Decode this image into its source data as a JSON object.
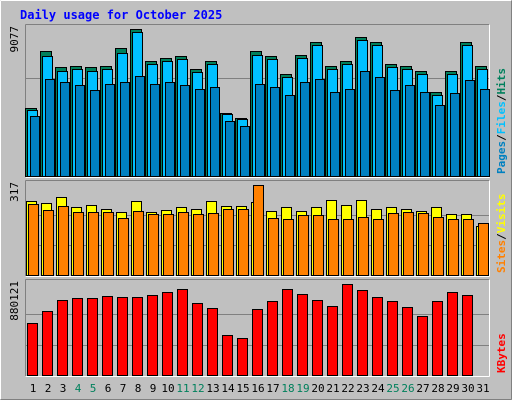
{
  "chart_data": {
    "type": "bar",
    "title": "Daily usage for October 2025",
    "colors": {
      "background": "#c0c0c0",
      "frame_light": "#ffffff",
      "frame_dark": "#808080",
      "title": "#0000ff",
      "hits": "#00805c",
      "files": "#00c0ff",
      "pages": "#0080c0",
      "visits": "#ffff00",
      "sites": "#ff8000",
      "kbytes": "#ff0000",
      "weekday_text": "#000000",
      "weekend_text": "#00805c",
      "grid": "#808080"
    },
    "days": [
      "1",
      "2",
      "3",
      "4",
      "5",
      "6",
      "7",
      "8",
      "9",
      "10",
      "11",
      "12",
      "13",
      "14",
      "15",
      "16",
      "17",
      "18",
      "19",
      "20",
      "21",
      "22",
      "23",
      "24",
      "25",
      "26",
      "27",
      "28",
      "29",
      "30",
      "31"
    ],
    "weekend_days": [
      "4",
      "5",
      "11",
      "12",
      "18",
      "19",
      "25",
      "26"
    ],
    "panels": [
      {
        "id": "hits-panel",
        "max_label": "9077",
        "ymax": 9077,
        "legend": [
          "Pages",
          "/",
          "Files",
          "/",
          "Hits"
        ],
        "legend_keys": [
          "pages",
          "sep",
          "files",
          "sep",
          "hits"
        ],
        "series": [
          {
            "name": "Hits",
            "key": "hits",
            "values": [
              4200,
              7700,
              6700,
              6800,
              6700,
              6800,
              7900,
              9077,
              7100,
              7300,
              7400,
              6600,
              7100,
              3900,
              3600,
              7700,
              7400,
              6300,
              7500,
              8300,
              6800,
              7100,
              8600,
              8300,
              6900,
              6800,
              6500,
              5200,
              6500,
              8300,
              6800
            ]
          },
          {
            "name": "Files",
            "key": "files",
            "values": [
              4100,
              7400,
              6500,
              6600,
              6500,
              6600,
              7600,
              8900,
              6900,
              7100,
              7200,
              6400,
              6900,
              3800,
              3500,
              7500,
              7200,
              6100,
              7300,
              8100,
              6600,
              6900,
              8400,
              8100,
              6700,
              6600,
              6300,
              5000,
              6300,
              8100,
              6600
            ]
          },
          {
            "name": "Pages",
            "key": "pages",
            "values": [
              3700,
              6000,
              5800,
              5600,
              5300,
              5700,
              5800,
              6200,
              5700,
              5800,
              5600,
              5400,
              5500,
              3400,
              3100,
              5700,
              5500,
              5000,
              5800,
              6000,
              5200,
              5400,
              6500,
              6100,
              5300,
              5600,
              5200,
              4400,
              5100,
              5900,
              5400
            ]
          }
        ]
      },
      {
        "id": "visits-panel",
        "max_label": "317",
        "ymax": 317,
        "legend": [
          "Sites",
          "/",
          "Visits"
        ],
        "legend_keys": [
          "sites",
          "sep",
          "visits"
        ],
        "series": [
          {
            "name": "Visits",
            "key": "visits",
            "values": [
              260,
              253,
              274,
              239,
              247,
              232,
              223,
              262,
              222,
              230,
              239,
              233,
              261,
              242,
              244,
              257,
              227,
              238,
              225,
              238,
              265,
              248,
              265,
              233,
              239,
              234,
              227,
              241,
              214,
              216,
              171
            ]
          },
          {
            "name": "Sites",
            "key": "sites",
            "values": [
              249,
              229,
              243,
              222,
              221,
              222,
              201,
              226,
              214,
              214,
              222,
              214,
              219,
              232,
              234,
              317,
              202,
              196,
              213,
              213,
              198,
              197,
              205,
              199,
              218,
              221,
              219,
              205,
              197,
              196,
              184
            ]
          }
        ]
      },
      {
        "id": "kbytes-panel",
        "max_label": "880121",
        "ymax": 880121,
        "legend": [
          "KBytes"
        ],
        "legend_keys": [
          "kbytes"
        ],
        "series": [
          {
            "name": "KBytes",
            "key": "kbytes",
            "values": [
              500000,
              620000,
              730000,
              740000,
              740000,
              760000,
              750000,
              750000,
              770000,
              800000,
              830000,
              700000,
              650000,
              390000,
              360000,
              640000,
              720000,
              830000,
              780000,
              730000,
              670000,
              880121,
              820000,
              750000,
              720000,
              660000,
              570000,
              720000,
              800000,
              770000,
              0
            ]
          }
        ]
      }
    ]
  }
}
